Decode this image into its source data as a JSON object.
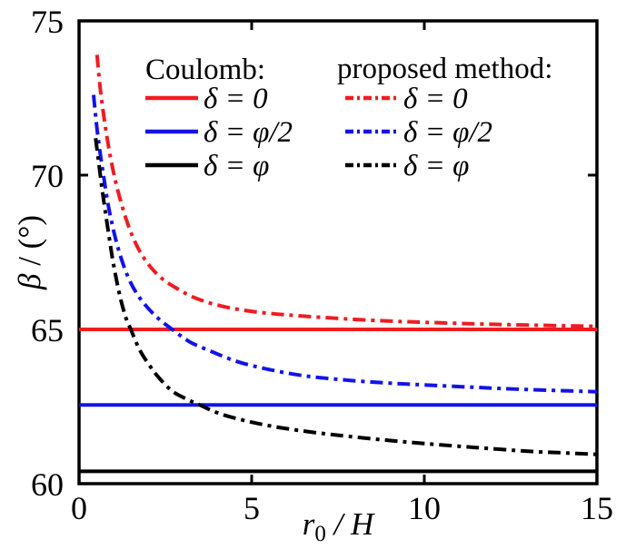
{
  "figure": {
    "background": "#ffffff",
    "axis_color": "#000000"
  },
  "axes": {
    "xlabel": {
      "variable": "r",
      "subscript": "0",
      "rest": " / H"
    },
    "ylabel": {
      "variable": "β",
      "rest": " / (°)"
    },
    "xlim": [
      0,
      15
    ],
    "ylim": [
      60,
      75
    ],
    "x_ticks": [
      0,
      5,
      10,
      15
    ],
    "y_ticks": [
      60,
      65,
      70,
      75
    ]
  },
  "legend": {
    "col1_title": "Coulomb:",
    "col2_title": "proposed method:",
    "items": [
      {
        "label": "δ = 0"
      },
      {
        "label": "δ = φ/2"
      },
      {
        "label": "δ = φ"
      }
    ]
  },
  "chart_data": {
    "type": "line",
    "title": "",
    "xlabel": "r0 / H",
    "ylabel": "β / (°)",
    "xlim": [
      0,
      15
    ],
    "ylim": [
      60,
      75
    ],
    "x_ticks": [
      0,
      5,
      10,
      15
    ],
    "y_ticks": [
      60,
      65,
      70,
      75
    ],
    "grid": false,
    "legend_position": "top-inside-two-columns",
    "series": [
      {
        "name": "Coulomb δ = 0",
        "group": "Coulomb",
        "label": "δ = 0",
        "color": "#ee1c23",
        "line_style": "solid",
        "constant_y": 65.0,
        "x_range": [
          0,
          15
        ]
      },
      {
        "name": "Coulomb δ = φ/2",
        "group": "Coulomb",
        "label": "δ = φ/2",
        "color": "#1313e8",
        "line_style": "solid",
        "constant_y": 62.55,
        "x_range": [
          0,
          15
        ]
      },
      {
        "name": "Coulomb δ = φ",
        "group": "Coulomb",
        "label": "δ = φ",
        "color": "#000000",
        "line_style": "solid",
        "constant_y": 60.4,
        "x_range": [
          0,
          15
        ]
      },
      {
        "name": "proposed method δ = 0",
        "group": "proposed method",
        "label": "δ = 0",
        "color": "#ee1c23",
        "line_style": "dash-dot",
        "points": [
          [
            0.52,
            73.9
          ],
          [
            0.6,
            72.95
          ],
          [
            0.7,
            72.05
          ],
          [
            0.82,
            71.15
          ],
          [
            0.95,
            70.35
          ],
          [
            1.1,
            69.6
          ],
          [
            1.3,
            68.8
          ],
          [
            1.5,
            68.15
          ],
          [
            1.75,
            67.55
          ],
          [
            2.05,
            67.05
          ],
          [
            2.4,
            66.65
          ],
          [
            2.8,
            66.35
          ],
          [
            3.3,
            66.05
          ],
          [
            3.9,
            65.82
          ],
          [
            4.6,
            65.65
          ],
          [
            5.5,
            65.52
          ],
          [
            6.5,
            65.43
          ],
          [
            7.6,
            65.35
          ],
          [
            8.8,
            65.28
          ],
          [
            10.0,
            65.23
          ],
          [
            11.5,
            65.18
          ],
          [
            13.0,
            65.14
          ],
          [
            15.0,
            65.1
          ]
        ]
      },
      {
        "name": "proposed method δ = φ/2",
        "group": "proposed method",
        "label": "δ = φ/2",
        "color": "#1313e8",
        "line_style": "dash-dot",
        "points": [
          [
            0.42,
            72.6
          ],
          [
            0.5,
            71.7
          ],
          [
            0.6,
            70.8
          ],
          [
            0.72,
            69.9
          ],
          [
            0.85,
            69.0
          ],
          [
            1.0,
            68.2
          ],
          [
            1.18,
            67.45
          ],
          [
            1.4,
            66.75
          ],
          [
            1.65,
            66.2
          ],
          [
            1.95,
            65.75
          ],
          [
            2.3,
            65.35
          ],
          [
            2.7,
            65.0
          ],
          [
            3.2,
            64.6
          ],
          [
            3.8,
            64.3
          ],
          [
            4.6,
            63.95
          ],
          [
            5.5,
            63.7
          ],
          [
            6.5,
            63.5
          ],
          [
            7.6,
            63.37
          ],
          [
            8.8,
            63.27
          ],
          [
            10.0,
            63.2
          ],
          [
            11.5,
            63.12
          ],
          [
            13.0,
            63.05
          ],
          [
            15.0,
            62.98
          ]
        ]
      },
      {
        "name": "proposed method δ = φ",
        "group": "proposed method",
        "label": "δ = φ",
        "color": "#000000",
        "line_style": "dash-dot",
        "points": [
          [
            0.48,
            71.2
          ],
          [
            0.56,
            70.5
          ],
          [
            0.65,
            69.7
          ],
          [
            0.75,
            68.9
          ],
          [
            0.87,
            68.0
          ],
          [
            1.0,
            67.1
          ],
          [
            1.18,
            66.1
          ],
          [
            1.35,
            65.4
          ],
          [
            1.5,
            65.0
          ],
          [
            1.75,
            64.35
          ],
          [
            2.0,
            63.9
          ],
          [
            2.3,
            63.45
          ],
          [
            2.7,
            63.0
          ],
          [
            3.1,
            62.75
          ],
          [
            3.5,
            62.55
          ],
          [
            4.0,
            62.3
          ],
          [
            4.6,
            62.1
          ],
          [
            5.4,
            61.9
          ],
          [
            6.4,
            61.72
          ],
          [
            7.5,
            61.57
          ],
          [
            8.8,
            61.42
          ],
          [
            10.0,
            61.3
          ],
          [
            11.5,
            61.17
          ],
          [
            13.0,
            61.05
          ],
          [
            14.0,
            61.0
          ],
          [
            15.0,
            60.95
          ]
        ]
      }
    ]
  }
}
